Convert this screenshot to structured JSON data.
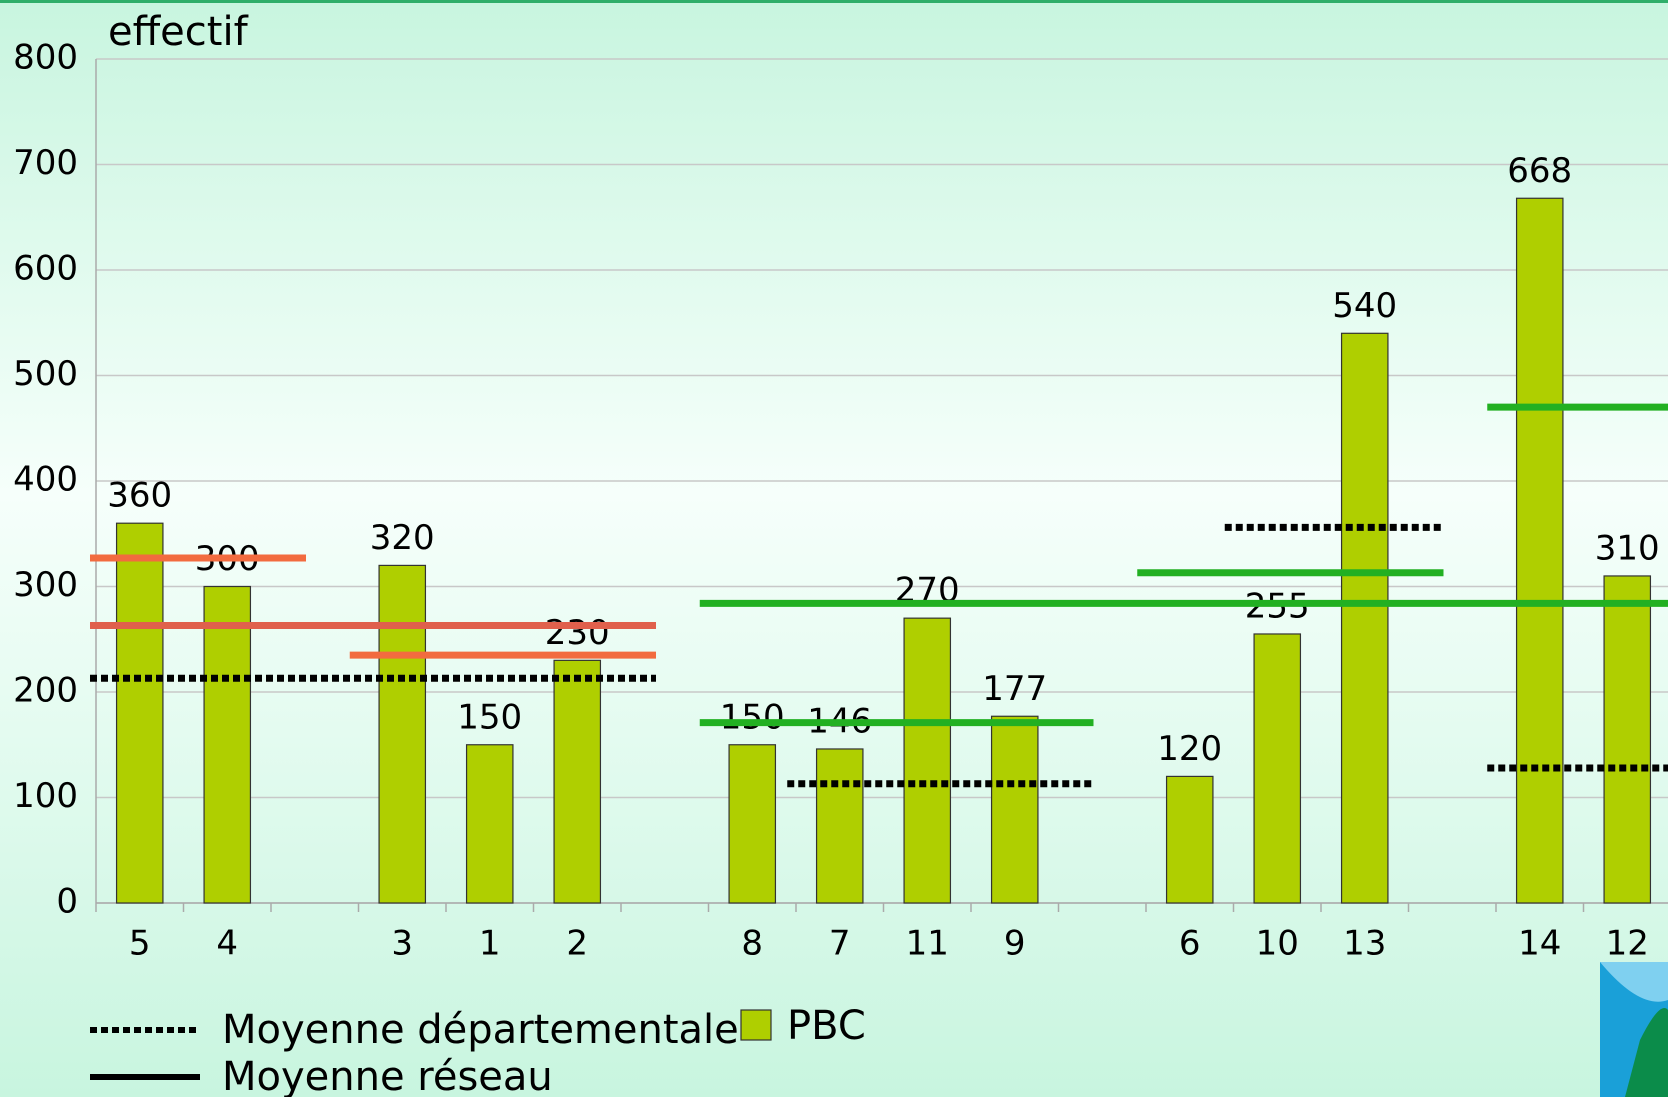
{
  "chart_data": {
    "type": "bar",
    "y_label": "effectif",
    "categories": [
      "5",
      "4",
      null,
      "3",
      "1",
      "2",
      null,
      "8",
      "7",
      "11",
      "9",
      null,
      "6",
      "10",
      "13",
      null,
      "14",
      "12"
    ],
    "series": [
      {
        "name": "PBC",
        "color": "#afcf00",
        "values": [
          360,
          300,
          null,
          320,
          150,
          230,
          null,
          150,
          146,
          270,
          177,
          null,
          120,
          255,
          540,
          null,
          668,
          310
        ]
      }
    ],
    "lines": [
      {
        "name": "Moyenne départementale",
        "style": "dotted",
        "color": "#000000",
        "segments": [
          {
            "value": 213,
            "from": 0,
            "to": 5,
            "color": "#000000"
          },
          {
            "value": 113,
            "from": 8,
            "to": 10,
            "color": "#000000"
          },
          {
            "value": 356,
            "from": 13,
            "to": 14,
            "color": "#000000"
          },
          {
            "value": 128,
            "from": 16,
            "to": 17,
            "color": "#000000"
          }
        ]
      },
      {
        "name": "Moyenne réseau",
        "style": "solid",
        "color": "#000000",
        "segments": [
          {
            "value": 327,
            "from": 0,
            "to": 1,
            "color": "#f26b3f"
          },
          {
            "value": 263,
            "from": 0,
            "to": 5,
            "color": "#e0604c"
          },
          {
            "value": 235,
            "from": 3,
            "to": 5,
            "color": "#f26b3f"
          },
          {
            "value": 284,
            "from": 7,
            "to": 17,
            "color": "#22b022"
          },
          {
            "value": 171,
            "from": 7,
            "to": 10,
            "color": "#22b022"
          },
          {
            "value": 313,
            "from": 12,
            "to": 14,
            "color": "#22b022"
          },
          {
            "value": 470,
            "from": 16,
            "to": 17,
            "color": "#22b022"
          }
        ]
      }
    ],
    "ylim": [
      0,
      800
    ],
    "yticks": [
      0,
      100,
      200,
      300,
      400,
      500,
      600,
      700,
      800
    ],
    "grid": true
  }
}
